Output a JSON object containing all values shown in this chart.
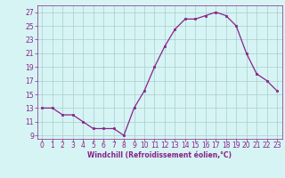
{
  "x": [
    0,
    1,
    2,
    3,
    4,
    5,
    6,
    7,
    8,
    9,
    10,
    11,
    12,
    13,
    14,
    15,
    16,
    17,
    18,
    19,
    20,
    21,
    22,
    23
  ],
  "y": [
    13,
    13,
    12,
    12,
    11,
    10,
    10,
    10,
    9,
    13,
    15.5,
    19,
    22,
    24.5,
    26,
    26,
    26.5,
    27,
    26.5,
    25,
    21,
    18,
    17,
    15.5
  ],
  "line_color": "#882288",
  "marker": "s",
  "markersize": 1.8,
  "linewidth": 0.9,
  "xlabel": "Windchill (Refroidissement éolien,°C)",
  "xlabel_fontsize": 5.5,
  "yticks": [
    9,
    11,
    13,
    15,
    17,
    19,
    21,
    23,
    25,
    27
  ],
  "xticks": [
    0,
    1,
    2,
    3,
    4,
    5,
    6,
    7,
    8,
    9,
    10,
    11,
    12,
    13,
    14,
    15,
    16,
    17,
    18,
    19,
    20,
    21,
    22,
    23
  ],
  "xlim": [
    -0.5,
    23.5
  ],
  "ylim": [
    8.5,
    28.0
  ],
  "bg_color": "#d6f4f4",
  "grid_color": "#aacccc",
  "tick_fontsize": 5.5,
  "tick_label_color": "#882288"
}
